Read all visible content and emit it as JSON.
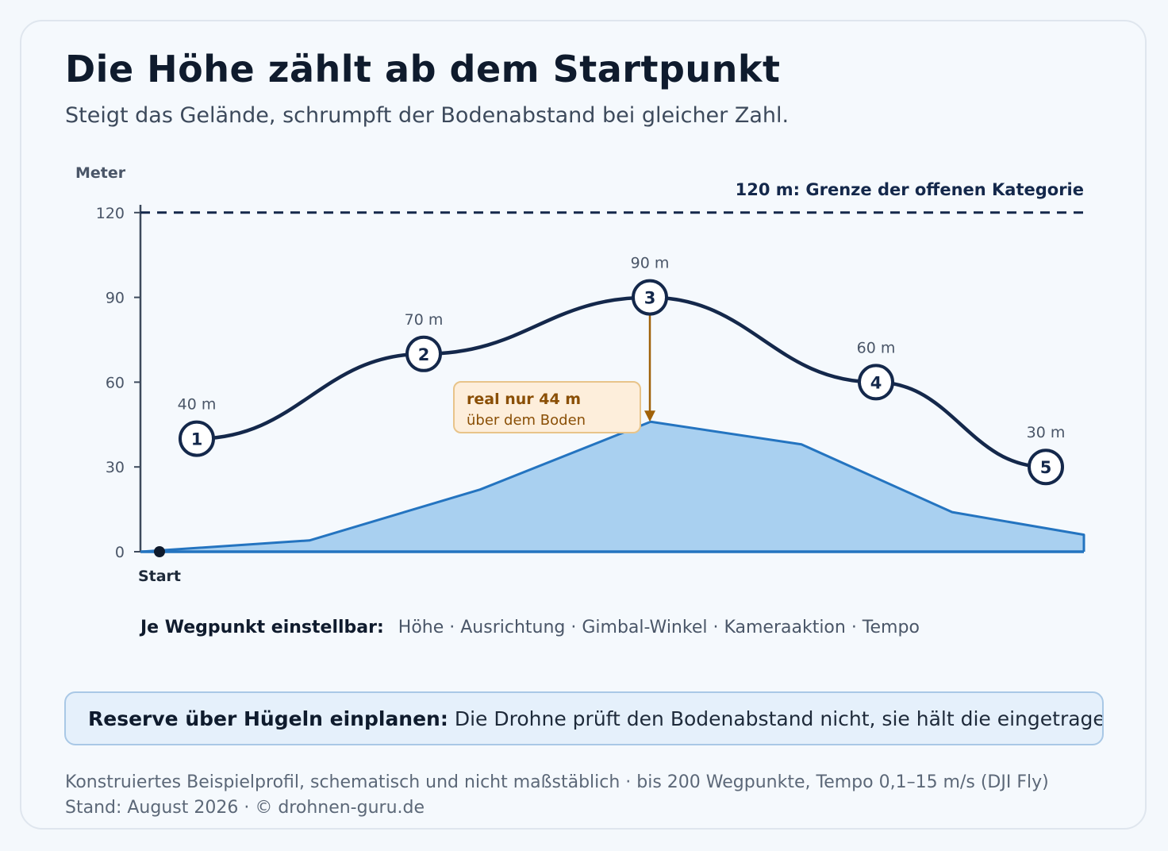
{
  "header": {
    "title": "Die Höhe zählt ab dem Startpunkt",
    "subtitle": "Steigt das Gelände, schrumpft der Bodenabstand bei gleicher Zahl."
  },
  "colors": {
    "flight_line": "#14284b",
    "terrain_fill": "#a9d0f0",
    "terrain_line": "#2474c0",
    "arrow": "#a0620a",
    "callout_bg": "#fdeedb",
    "callout_border": "#e8c48a"
  },
  "chart_data": {
    "type": "line",
    "ylabel": "Meter",
    "ylim": [
      0,
      120
    ],
    "yticks": [
      0,
      30,
      60,
      90,
      120
    ],
    "grid": false,
    "start_label": "Start",
    "limit": {
      "value": 120,
      "label": "120 m: Grenze der offenen Kategorie"
    },
    "waypoints": [
      {
        "id": "1",
        "altitude": 40,
        "label": "40 m"
      },
      {
        "id": "2",
        "altitude": 70,
        "label": "70 m"
      },
      {
        "id": "3",
        "altitude": 90,
        "label": "90 m"
      },
      {
        "id": "4",
        "altitude": 60,
        "label": "60 m"
      },
      {
        "id": "5",
        "altitude": 30,
        "label": "30 m"
      }
    ],
    "terrain_series": {
      "values": [
        0,
        4,
        22,
        46,
        38,
        14,
        6
      ]
    },
    "annotation": {
      "waypoint": "3",
      "ground_height": 46,
      "line1": "real nur 44 m",
      "line2": "über dem Boden"
    }
  },
  "params": {
    "label": "Je Wegpunkt einstellbar:",
    "items": "Höhe · Ausrichtung · Gimbal-Winkel · Kameraaktion · Tempo"
  },
  "callout": {
    "strong": "Reserve über Hügeln einplanen:",
    "text": "Die Drohne prüft den Bodenabstand nicht, sie hält die eingetragene Zahl."
  },
  "footer": {
    "line1": "Konstruiertes Beispielprofil, schematisch und nicht maßstäblich · bis 200 Wegpunkte, Tempo 0,1–15 m/s (DJI Fly)",
    "line2": "Stand: August 2026 · © drohnen-guru.de"
  }
}
